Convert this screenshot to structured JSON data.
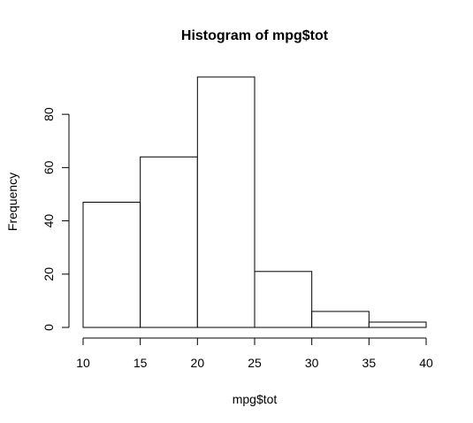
{
  "chart_data": {
    "type": "bar",
    "title": "Histogram of mpg$tot",
    "xlabel": "mpg$tot",
    "ylabel": "Frequency",
    "bins": [
      {
        "start": 10,
        "end": 15,
        "count": 47
      },
      {
        "start": 15,
        "end": 20,
        "count": 64
      },
      {
        "start": 20,
        "end": 25,
        "count": 94
      },
      {
        "start": 25,
        "end": 30,
        "count": 21
      },
      {
        "start": 30,
        "end": 35,
        "count": 6
      },
      {
        "start": 35,
        "end": 40,
        "count": 2
      }
    ],
    "xticks": [
      10,
      15,
      20,
      25,
      30,
      35,
      40
    ],
    "yticks": [
      0,
      20,
      40,
      60,
      80
    ],
    "xlim": [
      10,
      40
    ],
    "ylim": [
      0,
      94
    ],
    "grid": false,
    "colors": {
      "bar_fill": "#ffffff",
      "bar_stroke": "#000000",
      "axis": "#000000",
      "background": "#ffffff"
    }
  }
}
